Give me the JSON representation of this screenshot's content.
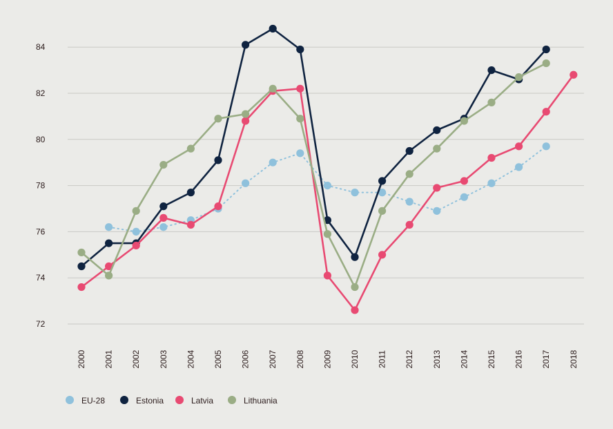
{
  "chart_data": {
    "type": "line",
    "title": "",
    "xlabel": "",
    "ylabel": "",
    "x": [
      "2000",
      "2001",
      "2002",
      "2003",
      "2004",
      "2005",
      "2006",
      "2007",
      "2008",
      "2009",
      "2010",
      "2011",
      "2012",
      "2013",
      "2014",
      "2015",
      "2016",
      "2017",
      "2018"
    ],
    "ylim": [
      72,
      85
    ],
    "yticks": [
      72,
      74,
      76,
      78,
      80,
      82,
      84
    ],
    "grid": true,
    "legend_position": "bottom-left",
    "series": [
      {
        "name": "EU-28",
        "color": "#8fc1dc",
        "line_style": "dotted",
        "values": [
          null,
          76.2,
          76.0,
          76.2,
          76.5,
          77.0,
          78.1,
          79.0,
          79.4,
          78.0,
          77.7,
          77.7,
          77.3,
          76.9,
          77.5,
          78.1,
          78.8,
          79.7,
          null
        ]
      },
      {
        "name": "Estonia",
        "color": "#0f2340",
        "line_style": "solid",
        "values": [
          74.5,
          75.5,
          75.5,
          77.1,
          77.7,
          79.1,
          84.1,
          84.8,
          83.9,
          76.5,
          74.9,
          78.2,
          79.5,
          80.4,
          80.9,
          83.0,
          82.6,
          83.9,
          null
        ]
      },
      {
        "name": "Latvia",
        "color": "#e84a72",
        "line_style": "solid",
        "values": [
          73.6,
          74.5,
          75.4,
          76.6,
          76.3,
          77.1,
          80.8,
          82.1,
          82.2,
          74.1,
          72.6,
          75.0,
          76.3,
          77.9,
          78.2,
          79.2,
          79.7,
          81.2,
          82.8
        ]
      },
      {
        "name": "Lithuania",
        "color": "#9aad85",
        "line_style": "solid",
        "values": [
          75.1,
          74.1,
          76.9,
          78.9,
          79.6,
          80.9,
          81.1,
          82.2,
          80.9,
          75.9,
          73.6,
          76.9,
          78.5,
          79.6,
          80.8,
          81.6,
          82.7,
          83.3,
          null
        ]
      }
    ]
  }
}
